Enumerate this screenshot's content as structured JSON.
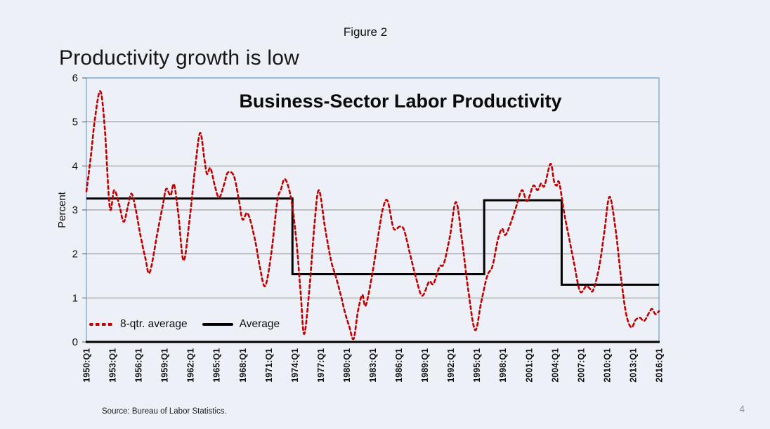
{
  "slide": {
    "figure_label": "Figure 2",
    "heading": "Productivity growth is low",
    "source": "Source:  Bureau of Labor Statistics.",
    "page_number": "4"
  },
  "colors": {
    "background": "#edf1f7",
    "plot_border": "#7fa8d3",
    "gridline": "#8c8c8c",
    "axis": "#000000",
    "series_red": "#c00000",
    "series_black": "#000000"
  },
  "chart_data": {
    "type": "line",
    "title": "Business-Sector Labor Productivity",
    "xlabel": "",
    "ylabel": "Percent",
    "ylim": [
      0,
      6
    ],
    "xlim": [
      1950,
      2016
    ],
    "grid": "horizontal",
    "legend_position": "inside-bottom-left",
    "y_ticks": [
      0,
      1,
      2,
      3,
      4,
      5,
      6
    ],
    "x_tick_labels": [
      "1950:Q1",
      "1953:Q1",
      "1956:Q1",
      "1959:Q1",
      "1962:Q1",
      "1965:Q1",
      "1968:Q1",
      "1971:Q1",
      "1974:Q1",
      "1977:Q1",
      "1980:Q1",
      "1983:Q1",
      "1986:Q1",
      "1989:Q1",
      "1992:Q1",
      "1995:Q1",
      "1998:Q1",
      "2001:Q1",
      "2004:Q1",
      "2007:Q1",
      "2010:Q1",
      "2013:Q1",
      "2016:Q1"
    ],
    "series": [
      {
        "name": "8-qtr. average",
        "style": "dashed-smooth",
        "color": "#c00000",
        "points": [
          [
            1950.0,
            3.42
          ],
          [
            1950.5,
            4.2
          ],
          [
            1951.0,
            5.1
          ],
          [
            1951.6,
            5.7
          ],
          [
            1952.1,
            4.9
          ],
          [
            1952.7,
            3.05
          ],
          [
            1953.2,
            3.45
          ],
          [
            1953.8,
            3.1
          ],
          [
            1954.3,
            2.73
          ],
          [
            1954.8,
            3.1
          ],
          [
            1955.2,
            3.37
          ],
          [
            1955.7,
            3.0
          ],
          [
            1956.2,
            2.45
          ],
          [
            1956.8,
            1.9
          ],
          [
            1957.3,
            1.58
          ],
          [
            1958.2,
            2.5
          ],
          [
            1958.8,
            3.1
          ],
          [
            1959.2,
            3.48
          ],
          [
            1959.7,
            3.33
          ],
          [
            1960.1,
            3.58
          ],
          [
            1960.6,
            2.9
          ],
          [
            1961.2,
            1.85
          ],
          [
            1961.9,
            2.8
          ],
          [
            1962.5,
            3.9
          ],
          [
            1963.1,
            4.75
          ],
          [
            1963.6,
            4.15
          ],
          [
            1963.9,
            3.82
          ],
          [
            1964.3,
            3.95
          ],
          [
            1964.8,
            3.55
          ],
          [
            1965.3,
            3.28
          ],
          [
            1965.9,
            3.6
          ],
          [
            1966.3,
            3.85
          ],
          [
            1967.0,
            3.77
          ],
          [
            1967.6,
            3.2
          ],
          [
            1968.0,
            2.78
          ],
          [
            1968.6,
            2.92
          ],
          [
            1969.4,
            2.35
          ],
          [
            1970.0,
            1.7
          ],
          [
            1970.6,
            1.27
          ],
          [
            1971.3,
            2.0
          ],
          [
            1972.0,
            3.2
          ],
          [
            1972.4,
            3.45
          ],
          [
            1972.9,
            3.7
          ],
          [
            1973.6,
            3.25
          ],
          [
            1974.2,
            2.3
          ],
          [
            1974.7,
            1.1
          ],
          [
            1975.1,
            0.18
          ],
          [
            1975.7,
            1.2
          ],
          [
            1976.3,
            2.7
          ],
          [
            1976.8,
            3.45
          ],
          [
            1977.5,
            2.6
          ],
          [
            1978.2,
            1.85
          ],
          [
            1978.8,
            1.45
          ],
          [
            1979.4,
            1.0
          ],
          [
            1979.8,
            0.67
          ],
          [
            1980.3,
            0.35
          ],
          [
            1980.8,
            0.07
          ],
          [
            1981.3,
            0.7
          ],
          [
            1981.8,
            1.07
          ],
          [
            1982.2,
            0.83
          ],
          [
            1983.0,
            1.6
          ],
          [
            1983.7,
            2.5
          ],
          [
            1984.2,
            3.05
          ],
          [
            1984.7,
            3.21
          ],
          [
            1985.3,
            2.65
          ],
          [
            1985.6,
            2.55
          ],
          [
            1986.1,
            2.62
          ],
          [
            1986.6,
            2.55
          ],
          [
            1987.3,
            2.0
          ],
          [
            1988.0,
            1.45
          ],
          [
            1988.7,
            1.05
          ],
          [
            1989.5,
            1.37
          ],
          [
            1990.0,
            1.32
          ],
          [
            1990.7,
            1.71
          ],
          [
            1991.2,
            1.78
          ],
          [
            1991.9,
            2.4
          ],
          [
            1992.6,
            3.18
          ],
          [
            1993.3,
            2.3
          ],
          [
            1994.0,
            1.2
          ],
          [
            1994.8,
            0.27
          ],
          [
            1995.5,
            0.9
          ],
          [
            1996.2,
            1.5
          ],
          [
            1996.8,
            1.72
          ],
          [
            1997.4,
            2.3
          ],
          [
            1997.9,
            2.57
          ],
          [
            1998.3,
            2.43
          ],
          [
            1998.9,
            2.7
          ],
          [
            1999.5,
            3.05
          ],
          [
            2000.2,
            3.45
          ],
          [
            2000.8,
            3.2
          ],
          [
            2001.5,
            3.55
          ],
          [
            2002.0,
            3.45
          ],
          [
            2002.4,
            3.6
          ],
          [
            2002.8,
            3.55
          ],
          [
            2003.5,
            4.05
          ],
          [
            2003.9,
            3.65
          ],
          [
            2004.2,
            3.55
          ],
          [
            2004.5,
            3.62
          ],
          [
            2005.1,
            2.9
          ],
          [
            2005.7,
            2.3
          ],
          [
            2006.2,
            1.8
          ],
          [
            2006.9,
            1.15
          ],
          [
            2007.6,
            1.27
          ],
          [
            2008.0,
            1.22
          ],
          [
            2008.4,
            1.17
          ],
          [
            2009.1,
            1.7
          ],
          [
            2009.7,
            2.5
          ],
          [
            2010.3,
            3.3
          ],
          [
            2011.0,
            2.55
          ],
          [
            2011.6,
            1.5
          ],
          [
            2012.2,
            0.65
          ],
          [
            2012.8,
            0.33
          ],
          [
            2013.3,
            0.5
          ],
          [
            2013.8,
            0.55
          ],
          [
            2014.3,
            0.48
          ],
          [
            2014.9,
            0.68
          ],
          [
            2015.2,
            0.75
          ],
          [
            2015.6,
            0.63
          ],
          [
            2016.0,
            0.7
          ]
        ]
      },
      {
        "name": "Average",
        "style": "step-solid",
        "color": "#000000",
        "steps": [
          {
            "from": 1950.0,
            "to": 1973.75,
            "value": 3.26
          },
          {
            "from": 1973.75,
            "to": 1995.85,
            "value": 1.54
          },
          {
            "from": 1995.85,
            "to": 2004.78,
            "value": 3.22
          },
          {
            "from": 2004.78,
            "to": 2016.0,
            "value": 1.3
          }
        ]
      }
    ]
  }
}
